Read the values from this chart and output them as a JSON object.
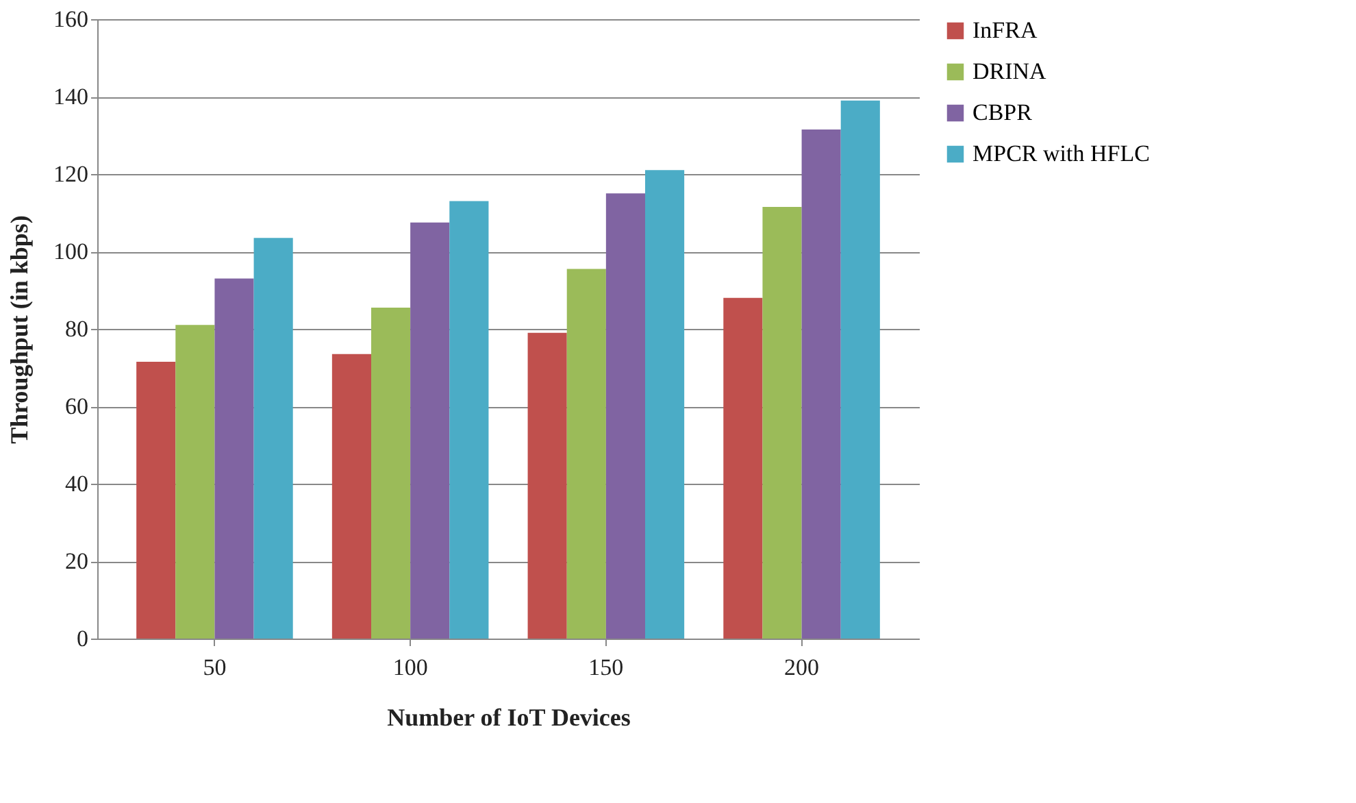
{
  "chart_data": {
    "type": "bar",
    "xlabel": "Number of IoT Devices",
    "ylabel": "Throughput (in kbps)",
    "categories": [
      "50",
      "100",
      "150",
      "200"
    ],
    "series": [
      {
        "name": "InFRA",
        "color": "#c0504d",
        "values": [
          71.5,
          73.5,
          79,
          88
        ]
      },
      {
        "name": "DRINA",
        "color": "#9bbb59",
        "values": [
          81,
          85.5,
          95.5,
          111.5
        ]
      },
      {
        "name": "CBPR",
        "color": "#8064a2",
        "values": [
          93,
          107.5,
          115,
          131.5
        ]
      },
      {
        "name": "MPCR with HFLC",
        "color": "#4bacc6",
        "values": [
          103.5,
          113,
          121,
          139
        ]
      }
    ],
    "ylim": [
      0,
      160
    ],
    "yticks": [
      0,
      20,
      40,
      60,
      80,
      100,
      120,
      140,
      160
    ],
    "grid": "y",
    "legend": "right"
  }
}
